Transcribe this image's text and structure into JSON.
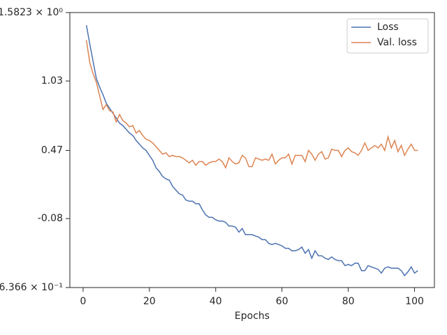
{
  "chart_data": {
    "type": "line",
    "xlabel": "Epochs",
    "x": [
      1,
      2,
      3,
      4,
      5,
      6,
      7,
      8,
      9,
      10,
      11,
      12,
      13,
      14,
      15,
      16,
      17,
      18,
      19,
      20,
      21,
      22,
      23,
      24,
      25,
      26,
      27,
      28,
      29,
      30,
      31,
      32,
      33,
      34,
      35,
      36,
      37,
      38,
      39,
      40,
      41,
      42,
      43,
      44,
      45,
      46,
      47,
      48,
      49,
      50,
      51,
      52,
      53,
      54,
      55,
      56,
      57,
      58,
      59,
      60,
      61,
      62,
      63,
      64,
      65,
      66,
      67,
      68,
      69,
      70,
      71,
      72,
      73,
      74,
      75,
      76,
      77,
      78,
      79,
      80,
      81,
      82,
      83,
      84,
      85,
      86,
      87,
      88,
      89,
      90,
      91,
      92,
      93,
      94,
      95,
      96,
      97,
      98,
      99,
      100,
      101
    ],
    "series": [
      {
        "name": "Loss",
        "color": "#4c72b0",
        "values": [
          1.48,
          1.33,
          1.19,
          1.05,
          0.98,
          0.92,
          0.85,
          0.81,
          0.77,
          0.73,
          0.69,
          0.67,
          0.64,
          0.61,
          0.59,
          0.55,
          0.52,
          0.49,
          0.47,
          0.43,
          0.39,
          0.33,
          0.3,
          0.26,
          0.24,
          0.23,
          0.18,
          0.15,
          0.12,
          0.11,
          0.07,
          0.06,
          0.06,
          0.04,
          0.04,
          -0.01,
          -0.05,
          -0.07,
          -0.07,
          -0.09,
          -0.1,
          -0.1,
          -0.11,
          -0.14,
          -0.14,
          -0.15,
          -0.19,
          -0.16,
          -0.21,
          -0.21,
          -0.21,
          -0.22,
          -0.23,
          -0.25,
          -0.25,
          -0.28,
          -0.29,
          -0.28,
          -0.29,
          -0.3,
          -0.32,
          -0.32,
          -0.34,
          -0.34,
          -0.33,
          -0.31,
          -0.36,
          -0.33,
          -0.4,
          -0.34,
          -0.38,
          -0.38,
          -0.4,
          -0.41,
          -0.39,
          -0.41,
          -0.42,
          -0.42,
          -0.46,
          -0.45,
          -0.46,
          -0.44,
          -0.44,
          -0.5,
          -0.5,
          -0.46,
          -0.47,
          -0.48,
          -0.49,
          -0.52,
          -0.48,
          -0.47,
          -0.48,
          -0.48,
          -0.48,
          -0.5,
          -0.54,
          -0.51,
          -0.47,
          -0.52,
          -0.5
        ]
      },
      {
        "name": "Val. loss",
        "color": "#dd8452",
        "values": [
          1.36,
          1.18,
          1.09,
          1.02,
          0.91,
          0.8,
          0.84,
          0.79,
          0.78,
          0.7,
          0.76,
          0.71,
          0.69,
          0.66,
          0.67,
          0.61,
          0.63,
          0.59,
          0.56,
          0.55,
          0.53,
          0.5,
          0.47,
          0.44,
          0.45,
          0.42,
          0.43,
          0.42,
          0.42,
          0.41,
          0.39,
          0.37,
          0.39,
          0.35,
          0.38,
          0.38,
          0.35,
          0.37,
          0.38,
          0.38,
          0.4,
          0.38,
          0.33,
          0.41,
          0.38,
          0.36,
          0.37,
          0.43,
          0.41,
          0.34,
          0.34,
          0.41,
          0.4,
          0.39,
          0.4,
          0.39,
          0.44,
          0.36,
          0.39,
          0.41,
          0.41,
          0.44,
          0.36,
          0.43,
          0.43,
          0.43,
          0.38,
          0.47,
          0.44,
          0.39,
          0.44,
          0.46,
          0.4,
          0.41,
          0.48,
          0.47,
          0.47,
          0.42,
          0.47,
          0.49,
          0.46,
          0.45,
          0.43,
          0.47,
          0.53,
          0.47,
          0.49,
          0.51,
          0.49,
          0.52,
          0.47,
          0.58,
          0.49,
          0.55,
          0.46,
          0.51,
          0.43,
          0.48,
          0.52,
          0.47,
          0.47
        ]
      }
    ],
    "xlim": [
      -4,
      106
    ],
    "xticks": [
      0,
      20,
      40,
      60,
      80,
      100
    ],
    "ylim": [
      -0.6366,
      1.5823
    ],
    "yticks": [
      {
        "value": -0.6366,
        "label": "−6.366 × 10⁻¹"
      },
      {
        "value": -0.08,
        "label": "-0.08"
      },
      {
        "value": 0.47,
        "label": "0.47"
      },
      {
        "value": 1.03,
        "label": "1.03"
      },
      {
        "value": 1.5823,
        "label": "1.5823 × 10⁰"
      }
    ],
    "legend": "upper right"
  }
}
